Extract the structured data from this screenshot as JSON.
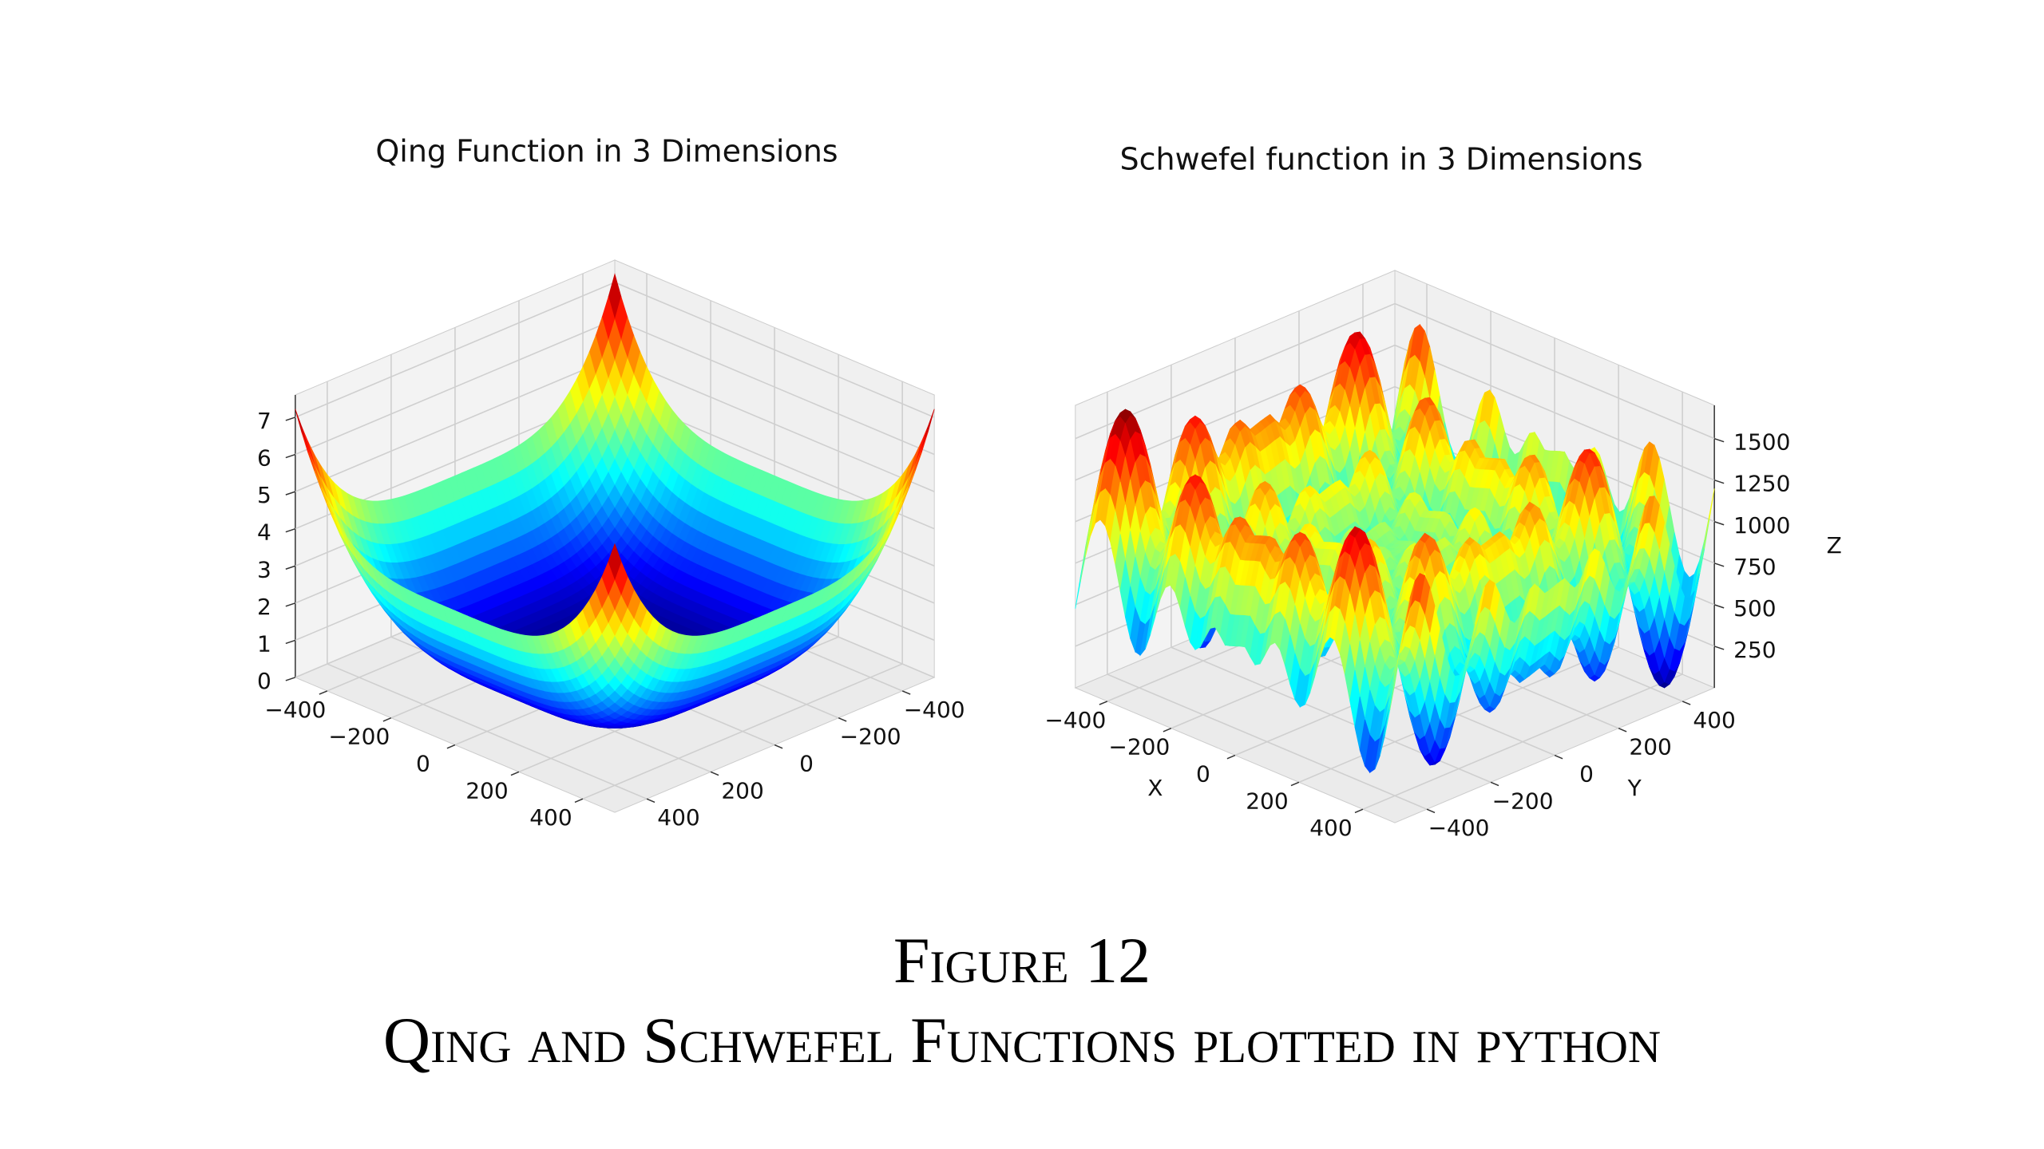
{
  "chart_data": [
    {
      "type": "surface",
      "title": "Qing Function in 3 Dimensions",
      "xlim": [
        -500,
        500
      ],
      "ylim": [
        -500,
        500
      ],
      "zlim": [
        0,
        7.6
      ],
      "xticks": [
        {
          "value": -400,
          "label": "−400"
        },
        {
          "value": -200,
          "label": "−200"
        },
        0,
        200,
        400
      ],
      "yticks": [
        {
          "value": -400,
          "label": "−400"
        },
        {
          "value": -200,
          "label": "−200"
        },
        0,
        200,
        400
      ],
      "zticks": [
        0,
        1,
        2,
        3,
        4,
        5,
        6,
        7
      ],
      "colormap": "jet",
      "grid": true
    },
    {
      "type": "surface",
      "title": "Schwefel function in 3 Dimensions",
      "xlabel": "X",
      "ylabel": "Y",
      "zlabel": "Z",
      "xlim": [
        -500,
        500
      ],
      "ylim": [
        -500,
        500
      ],
      "zlim": [
        0,
        1700
      ],
      "xticks": [
        {
          "value": -400,
          "label": "−400"
        },
        {
          "value": -200,
          "label": "−200"
        },
        0,
        200,
        400
      ],
      "yticks": [
        {
          "value": -400,
          "label": "−400"
        },
        {
          "value": -200,
          "label": "−200"
        },
        0,
        200,
        400
      ],
      "zticks": [
        250,
        500,
        750,
        1000,
        1250,
        1500
      ],
      "colormap": "jet",
      "grid": true
    }
  ],
  "caption": {
    "label": "Figure 12",
    "text": "Qing and Schwefel Functions plotted in python"
  }
}
